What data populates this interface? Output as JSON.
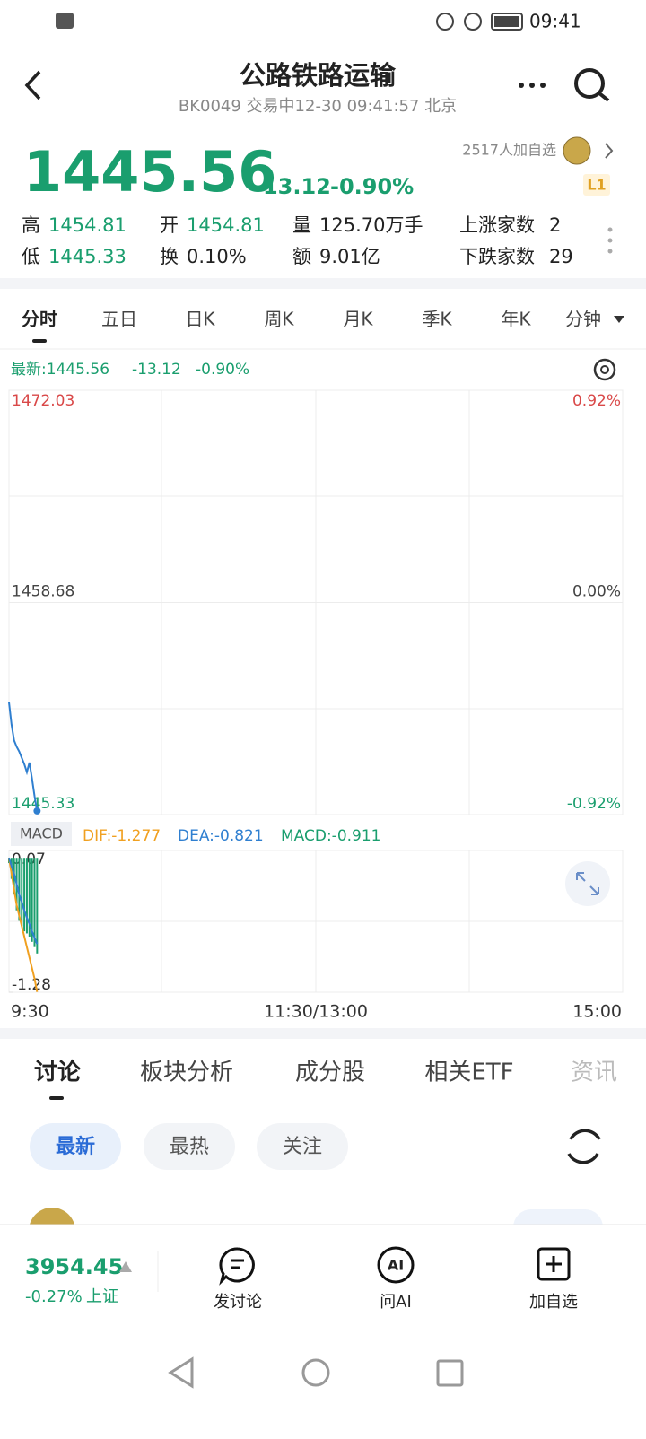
{
  "status_bar": {
    "time": "09:41"
  },
  "header": {
    "title": "公路铁路运输",
    "subtitle": "BK0049 交易中12-30 09:41:57 北京"
  },
  "watch": {
    "followers": "2517人加自选",
    "level": "L1"
  },
  "quote": {
    "price": "1445.56",
    "change": "-13.12",
    "change_pct": "-0.90%"
  },
  "stats": [
    [
      {
        "label": "高",
        "value": "1454.81"
      },
      {
        "label": "开",
        "value": "1454.81"
      },
      {
        "label": "量",
        "value": "125.70万手"
      },
      {
        "label": "上涨家数",
        "value": "2"
      }
    ],
    [
      {
        "label": "低",
        "value": "1445.33"
      },
      {
        "label": "换",
        "value": "0.10%"
      },
      {
        "label": "额",
        "value": "9.01亿"
      },
      {
        "label": "下跌家数",
        "value": "29"
      }
    ]
  ],
  "period_tabs": [
    "分时",
    "五日",
    "日K",
    "周K",
    "月K",
    "季K",
    "年K",
    "分钟"
  ],
  "intraday": {
    "legend": {
      "latest": "最新:1445.56",
      "change": "-13.12",
      "change_pct": "-0.90%"
    },
    "type": "line",
    "x": [
      0,
      1,
      2,
      3,
      4,
      5,
      6,
      7,
      8,
      9,
      10,
      11
    ],
    "values": [
      1452.4,
      1451.0,
      1450.0,
      1449.6,
      1449.3,
      1448.9,
      1448.5,
      1448.0,
      1448.6,
      1447.6,
      1446.5,
      1445.56
    ],
    "color": "#2f7fd0",
    "xlim": [
      0,
      240
    ],
    "xticks": [
      {
        "value": 0,
        "label": "9:30"
      },
      {
        "value": 120,
        "label": "11:30/13:00"
      },
      {
        "value": 240,
        "label": "15:00"
      }
    ],
    "ylim": [
      1445.33,
      1472.03
    ],
    "yticks": [
      1472.03,
      1458.68,
      1445.33
    ],
    "y2lim": [
      -0.92,
      0.92
    ],
    "y2ticks": [
      {
        "value": 0.92,
        "label": "0.92%"
      },
      {
        "value": 0.0,
        "label": "0.00%"
      },
      {
        "value": -0.92,
        "label": "-0.92%"
      }
    ]
  },
  "macd": {
    "title": "MACD",
    "dif_label": "DIF:-1.277",
    "dea_label": "DEA:-0.821",
    "macd_label": "MACD:-0.911",
    "x": [
      0,
      1,
      2,
      3,
      4,
      5,
      6,
      7,
      8,
      9,
      10,
      11
    ],
    "dif": [
      0.0,
      -0.15,
      -0.3,
      -0.45,
      -0.55,
      -0.65,
      -0.75,
      -0.85,
      -0.95,
      -1.05,
      -1.15,
      -1.277
    ],
    "dea": [
      0.0,
      -0.08,
      -0.15,
      -0.25,
      -0.35,
      -0.42,
      -0.5,
      -0.57,
      -0.63,
      -0.7,
      -0.76,
      -0.821
    ],
    "macd": [
      -0.05,
      -0.2,
      -0.35,
      -0.5,
      -0.6,
      -0.65,
      -0.7,
      -0.72,
      -0.75,
      -0.8,
      -0.85,
      -0.911
    ],
    "dif_color": "#f0a020",
    "dea_color": "#2f7fd0",
    "bar_color": "#1a9e6e",
    "ylim": [
      -1.28,
      0.07
    ],
    "yticks": [
      0.07,
      -1.28
    ]
  },
  "content_tabs": [
    "讨论",
    "板块分析",
    "成分股",
    "相关ETF",
    "资讯"
  ],
  "filters": [
    "最新",
    "最热",
    "关注"
  ],
  "bottom_bar": {
    "index_value": "3954.45",
    "index_change": "-0.27%",
    "index_name": "上证",
    "actions": [
      "发讨论",
      "问AI",
      "加自选"
    ],
    "ai_icon": "AI"
  }
}
